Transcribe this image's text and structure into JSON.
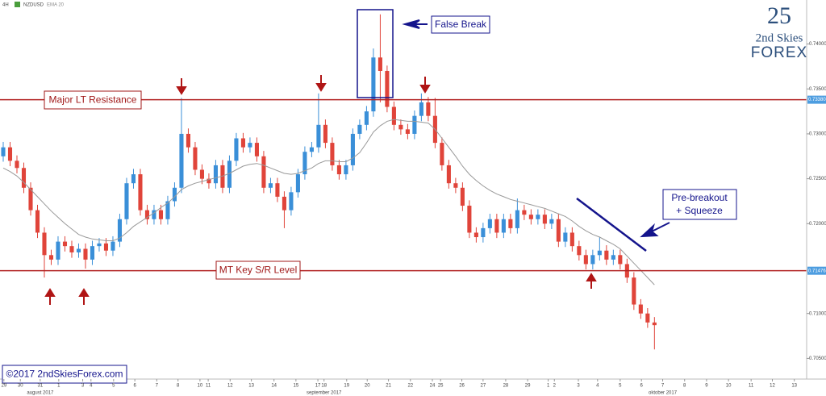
{
  "chart_data": {
    "type": "candlestick",
    "symbol": "NZDUSD",
    "timeframe": "4H",
    "up_color": "#3a8fd8",
    "down_color": "#e0443a",
    "ylim": [
      0.7027,
      0.7449
    ],
    "yticks": [
      {
        "value": 0.705,
        "label": "0.70500"
      },
      {
        "value": 0.71,
        "label": "0.71000"
      },
      {
        "value": 0.72,
        "label": "0.72000"
      },
      {
        "value": 0.725,
        "label": "0.72500"
      },
      {
        "value": 0.73,
        "label": "0.73000"
      },
      {
        "value": 0.735,
        "label": "0.73500"
      },
      {
        "value": 0.74,
        "label": "0.74000"
      }
    ],
    "xlim": [
      -0.47,
      117.2
    ],
    "xticks": [
      {
        "value": 0.1,
        "label": "29"
      },
      {
        "value": 2.5,
        "label": "30"
      },
      {
        "value": 5.4,
        "label": "31"
      },
      {
        "value": 8.1,
        "label": "1"
      },
      {
        "value": 11.6,
        "label": "3"
      },
      {
        "value": 12.8,
        "label": "4"
      },
      {
        "value": 16.1,
        "label": "5"
      },
      {
        "value": 19.2,
        "label": "6"
      },
      {
        "value": 22.4,
        "label": "7"
      },
      {
        "value": 25.5,
        "label": "8"
      },
      {
        "value": 28.7,
        "label": "10"
      },
      {
        "value": 29.9,
        "label": "11"
      },
      {
        "value": 33.1,
        "label": "12"
      },
      {
        "value": 36.2,
        "label": "13"
      },
      {
        "value": 39.5,
        "label": "14"
      },
      {
        "value": 42.7,
        "label": "15"
      },
      {
        "value": 45.9,
        "label": "17"
      },
      {
        "value": 46.8,
        "label": "18"
      },
      {
        "value": 50.1,
        "label": "19"
      },
      {
        "value": 53.1,
        "label": "20"
      },
      {
        "value": 56.2,
        "label": "21"
      },
      {
        "value": 59.4,
        "label": "22"
      },
      {
        "value": 62.6,
        "label": "24"
      },
      {
        "value": 63.8,
        "label": "25"
      },
      {
        "value": 66.9,
        "label": "26"
      },
      {
        "value": 70.0,
        "label": "27"
      },
      {
        "value": 73.3,
        "label": "28"
      },
      {
        "value": 76.5,
        "label": "29"
      },
      {
        "value": 79.5,
        "label": "1"
      },
      {
        "value": 80.4,
        "label": "2"
      },
      {
        "value": 83.9,
        "label": "3"
      },
      {
        "value": 86.7,
        "label": "4"
      },
      {
        "value": 90.0,
        "label": "5"
      },
      {
        "value": 93.1,
        "label": "6"
      },
      {
        "value": 96.2,
        "label": "7"
      },
      {
        "value": 99.4,
        "label": "8"
      },
      {
        "value": 102.6,
        "label": "9"
      },
      {
        "value": 105.8,
        "label": "10"
      },
      {
        "value": 109.1,
        "label": "11"
      },
      {
        "value": 112.2,
        "label": "12"
      },
      {
        "value": 115.4,
        "label": "13"
      }
    ],
    "month_labels": [
      {
        "value": 5.4,
        "label": "august 2017"
      },
      {
        "value": 46.8,
        "label": "september 2017"
      },
      {
        "value": 96.2,
        "label": "oktober 2017"
      }
    ],
    "open": [
      0.7275,
      0.7285,
      0.727,
      0.7262,
      0.724,
      0.7215,
      0.719,
      0.7165,
      0.716,
      0.718,
      0.7175,
      0.7168,
      0.7172,
      0.716,
      0.7175,
      0.7178,
      0.717,
      0.718,
      0.7205,
      0.7245,
      0.7255,
      0.7215,
      0.7205,
      0.7215,
      0.7205,
      0.7225,
      0.724,
      0.73,
      0.7285,
      0.726,
      0.725,
      0.7245,
      0.7265,
      0.724,
      0.727,
      0.7295,
      0.7285,
      0.729,
      0.7275,
      0.724,
      0.7245,
      0.723,
      0.7215,
      0.7235,
      0.7255,
      0.728,
      0.7285,
      0.731,
      0.729,
      0.7265,
      0.7255,
      0.7265,
      0.73,
      0.731,
      0.7325,
      0.7385,
      0.737,
      0.733,
      0.731,
      0.7305,
      0.73,
      0.732,
      0.7335,
      0.732,
      0.729,
      0.7265,
      0.7245,
      0.724,
      0.722,
      0.719,
      0.7185,
      0.7195,
      0.7205,
      0.719,
      0.7205,
      0.7195,
      0.7215,
      0.721,
      0.7205,
      0.721,
      0.72,
      0.7205,
      0.718,
      0.719,
      0.7175,
      0.7165,
      0.7155,
      0.7165,
      0.717,
      0.716,
      0.7165,
      0.7155,
      0.714,
      0.711,
      0.71,
      0.709
    ],
    "high": [
      0.7291,
      0.7291,
      0.7276,
      0.7268,
      0.7246,
      0.7221,
      0.7196,
      0.7171,
      0.7186,
      0.7186,
      0.7181,
      0.7178,
      0.7178,
      0.7181,
      0.7184,
      0.7184,
      0.7186,
      0.7211,
      0.7251,
      0.7261,
      0.7261,
      0.7221,
      0.7221,
      0.7221,
      0.7231,
      0.7246,
      0.734,
      0.7306,
      0.7291,
      0.7266,
      0.7256,
      0.7271,
      0.7271,
      0.7276,
      0.7301,
      0.7301,
      0.7296,
      0.7296,
      0.7281,
      0.7251,
      0.7251,
      0.7236,
      0.7241,
      0.7261,
      0.7286,
      0.7291,
      0.7345,
      0.7316,
      0.7296,
      0.7271,
      0.7271,
      0.7306,
      0.7316,
      0.7331,
      0.7395,
      0.7433,
      0.7376,
      0.7336,
      0.7316,
      0.7311,
      0.7326,
      0.7345,
      0.7341,
      0.734,
      0.7296,
      0.7271,
      0.7251,
      0.7246,
      0.7226,
      0.7196,
      0.7201,
      0.7211,
      0.7211,
      0.7211,
      0.7211,
      0.7228,
      0.7221,
      0.7216,
      0.7216,
      0.7216,
      0.7211,
      0.7211,
      0.7196,
      0.7196,
      0.7181,
      0.7171,
      0.7171,
      0.7185,
      0.7176,
      0.7171,
      0.7171,
      0.7161,
      0.7146,
      0.7116,
      0.7106,
      0.7096
    ],
    "low": [
      0.7269,
      0.7264,
      0.7256,
      0.7234,
      0.7209,
      0.7184,
      0.714,
      0.7154,
      0.7154,
      0.7169,
      0.7162,
      0.7162,
      0.715,
      0.7154,
      0.7169,
      0.7164,
      0.7164,
      0.7174,
      0.7199,
      0.7239,
      0.7209,
      0.7199,
      0.7199,
      0.7199,
      0.7199,
      0.7219,
      0.7234,
      0.7279,
      0.7254,
      0.7244,
      0.7239,
      0.7239,
      0.7234,
      0.7234,
      0.7264,
      0.7279,
      0.7279,
      0.7269,
      0.7234,
      0.7234,
      0.7224,
      0.7195,
      0.7209,
      0.7229,
      0.7249,
      0.7274,
      0.7279,
      0.7284,
      0.7259,
      0.7249,
      0.7249,
      0.7259,
      0.7294,
      0.7304,
      0.7319,
      0.7335,
      0.7324,
      0.7304,
      0.7299,
      0.7294,
      0.7294,
      0.7314,
      0.7314,
      0.7284,
      0.7259,
      0.7239,
      0.7234,
      0.7214,
      0.7184,
      0.7179,
      0.7179,
      0.7189,
      0.7184,
      0.7184,
      0.7189,
      0.7189,
      0.7204,
      0.7199,
      0.7199,
      0.7194,
      0.7194,
      0.7174,
      0.7174,
      0.7169,
      0.7159,
      0.7149,
      0.7149,
      0.7159,
      0.7154,
      0.7154,
      0.7149,
      0.7134,
      0.7104,
      0.7094,
      0.7084,
      0.706
    ],
    "close": [
      0.7285,
      0.727,
      0.7262,
      0.724,
      0.7215,
      0.719,
      0.7165,
      0.716,
      0.718,
      0.7175,
      0.7168,
      0.7172,
      0.716,
      0.7175,
      0.7178,
      0.717,
      0.718,
      0.7205,
      0.7245,
      0.7255,
      0.7215,
      0.7205,
      0.7215,
      0.7205,
      0.7225,
      0.724,
      0.73,
      0.7285,
      0.726,
      0.725,
      0.7245,
      0.7265,
      0.724,
      0.727,
      0.7295,
      0.7285,
      0.729,
      0.7275,
      0.724,
      0.7245,
      0.723,
      0.7215,
      0.7235,
      0.7255,
      0.728,
      0.7285,
      0.731,
      0.729,
      0.7265,
      0.7255,
      0.7265,
      0.73,
      0.731,
      0.7325,
      0.7385,
      0.737,
      0.733,
      0.731,
      0.7305,
      0.73,
      0.732,
      0.7335,
      0.732,
      0.729,
      0.7265,
      0.7245,
      0.724,
      0.722,
      0.719,
      0.7185,
      0.7195,
      0.7205,
      0.719,
      0.7205,
      0.7195,
      0.7215,
      0.721,
      0.7205,
      0.721,
      0.72,
      0.7205,
      0.718,
      0.719,
      0.7175,
      0.7165,
      0.7155,
      0.7165,
      0.717,
      0.716,
      0.7165,
      0.7155,
      0.714,
      0.711,
      0.71,
      0.709,
      0.7087
    ],
    "series": [
      {
        "name": "EMA 20",
        "color": "#999999",
        "values": [
          0.7262,
          0.7258,
          0.7253,
          0.7246,
          0.7238,
          0.723,
          0.7222,
          0.7214,
          0.7207,
          0.72,
          0.7194,
          0.7188,
          0.7185,
          0.7183,
          0.7182,
          0.7181,
          0.7181,
          0.7184,
          0.719,
          0.7197,
          0.7202,
          0.7207,
          0.7212,
          0.7218,
          0.7223,
          0.723,
          0.7238,
          0.7242,
          0.7245,
          0.7247,
          0.7249,
          0.7251,
          0.7253,
          0.7256,
          0.726,
          0.7264,
          0.7266,
          0.7267,
          0.7265,
          0.7262,
          0.7259,
          0.7256,
          0.7255,
          0.7256,
          0.7259,
          0.7262,
          0.7267,
          0.727,
          0.727,
          0.7269,
          0.7269,
          0.7273,
          0.7279,
          0.729,
          0.7302,
          0.7309,
          0.7314,
          0.7316,
          0.7315,
          0.7314,
          0.7314,
          0.7313,
          0.7312,
          0.7305,
          0.7295,
          0.7285,
          0.7275,
          0.7264,
          0.7255,
          0.7248,
          0.7242,
          0.7237,
          0.7233,
          0.723,
          0.7227,
          0.7225,
          0.7223,
          0.7221,
          0.7219,
          0.7217,
          0.7214,
          0.7211,
          0.7208,
          0.7203,
          0.7197,
          0.7192,
          0.7188,
          0.7185,
          0.7181,
          0.7177,
          0.7172,
          0.7164,
          0.7156,
          0.7148,
          0.714,
          0.7132
        ]
      }
    ],
    "levels": [
      {
        "value": 0.7338,
        "label": "0.73380",
        "name": "Major LT Resistance",
        "color": "#b22222"
      },
      {
        "value": 0.71476,
        "label": "0.71476",
        "name": "MT Key S/R Level",
        "color": "#b22222"
      }
    ],
    "annotations": {
      "false_break": "False Break",
      "squeeze_1": "Pre-breakout",
      "squeeze_2": "+ Squeeze"
    },
    "logo": {
      "top": "2nd Skies",
      "bottom": "FOREX"
    },
    "copyright": "©2017 2ndSkiesForex.com"
  }
}
